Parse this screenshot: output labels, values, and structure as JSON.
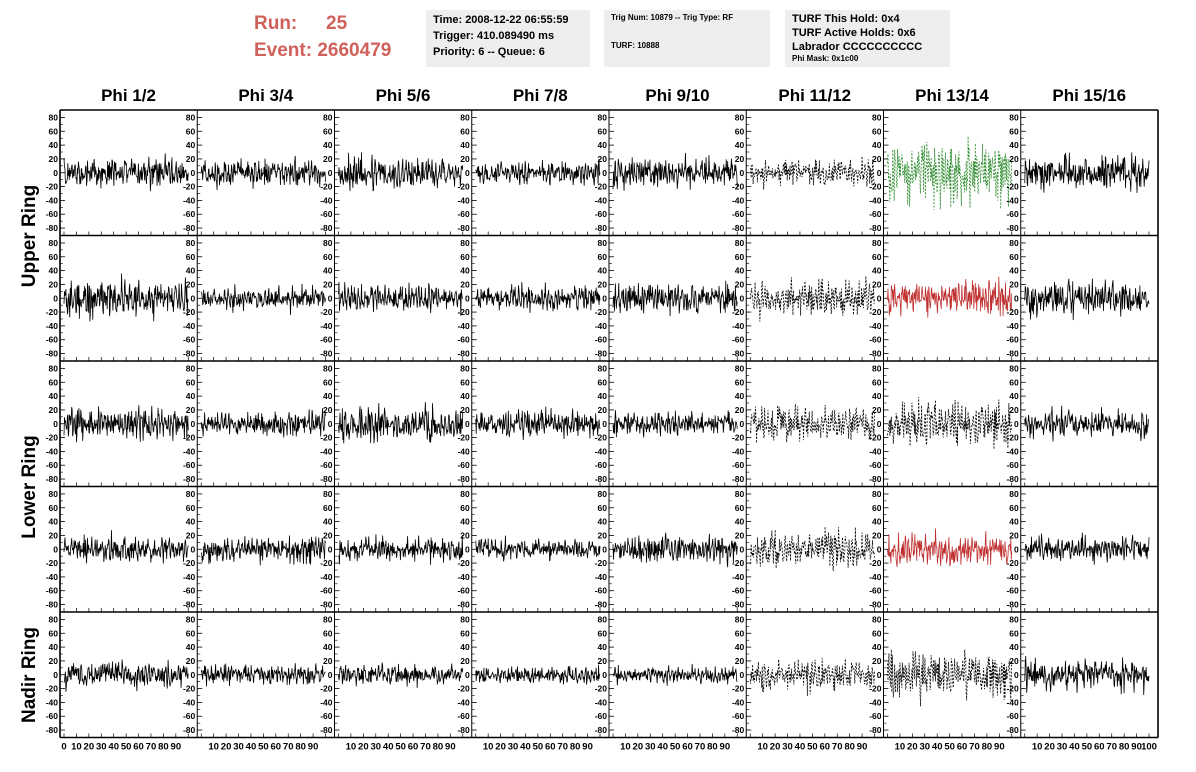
{
  "header": {
    "run_label": "Run:",
    "run_value": "25",
    "event_label": "Event:",
    "event_value": "2660479",
    "time": "Time: 2008-12-22 06:55:59",
    "trigger": "Trigger: 410.089490 ms",
    "priority": "Priority: 6 -- Queue: 6",
    "trig_num": "Trig Num: 10879 -- Trig Type: RF",
    "turf": "TURF: 10888",
    "turf_this_hold": "TURF This Hold: 0x4",
    "turf_active_holds": "TURF Active Holds: 0x6",
    "labrador": "Labrador CCCCCCCCCC",
    "phi_mask": "Phi Mask: 0x1c00"
  },
  "chart_data": {
    "type": "line",
    "columns": [
      "Phi 1/2",
      "Phi 3/4",
      "Phi 5/6",
      "Phi 7/8",
      "Phi 9/10",
      "Phi 11/12",
      "Phi 13/14",
      "Phi 15/16"
    ],
    "rings": [
      {
        "name": "Upper Ring",
        "rows": [
          0,
          1
        ]
      },
      {
        "name": "Lower Ring",
        "rows": [
          2,
          3
        ]
      },
      {
        "name": "Nadir Ring",
        "rows": [
          4
        ]
      }
    ],
    "ylim": [
      -85,
      85
    ],
    "yticks": [
      80,
      60,
      40,
      20,
      0,
      -20,
      -40,
      -60,
      -80
    ],
    "xlim": [
      0,
      100
    ],
    "xticks": [
      0,
      10,
      20,
      30,
      40,
      50,
      60,
      70,
      80,
      90,
      100
    ],
    "line_color_default": "#000000",
    "line_color_green": "#2e8b2e",
    "line_color_red": "#c03030",
    "panel_styles": [
      [
        "solid",
        "solid",
        "solid",
        "solid",
        "solid",
        "dashed",
        "green-dashed",
        "solid"
      ],
      [
        "solid",
        "solid",
        "solid",
        "solid",
        "solid",
        "dashed",
        "red",
        "solid"
      ],
      [
        "solid",
        "solid",
        "solid",
        "solid",
        "solid",
        "dashed",
        "dashed",
        "solid"
      ],
      [
        "solid",
        "solid",
        "solid",
        "solid",
        "solid",
        "dashed",
        "red",
        "solid"
      ],
      [
        "solid",
        "solid",
        "solid",
        "solid",
        "solid",
        "dashed",
        "dashed",
        "solid"
      ]
    ],
    "panel_amplitudes": [
      [
        18,
        16,
        20,
        14,
        18,
        16,
        40,
        20
      ],
      [
        22,
        14,
        16,
        14,
        18,
        22,
        20,
        20
      ],
      [
        20,
        14,
        20,
        16,
        14,
        20,
        28,
        16
      ],
      [
        16,
        16,
        16,
        12,
        16,
        22,
        20,
        14
      ],
      [
        16,
        12,
        12,
        10,
        10,
        18,
        28,
        18
      ]
    ],
    "samples_per_trace": 260
  }
}
